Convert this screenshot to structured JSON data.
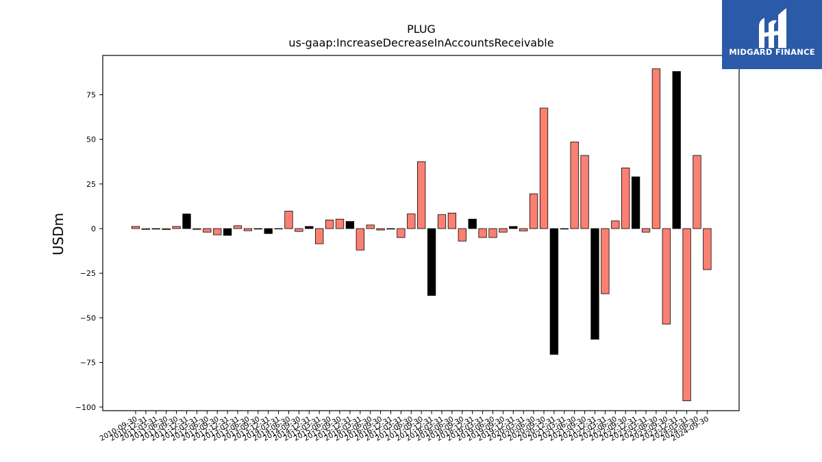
{
  "brand": {
    "name": "MIDGARD FINANCE",
    "colors": {
      "background": "#2b5aa8",
      "text": "#ffffff"
    },
    "icon": "midgard-finance-logo"
  },
  "chart_data": {
    "type": "bar",
    "title": "PLUG",
    "subtitle": "us-gaap:IncreaseDecreaseInAccountsReceivable",
    "xlabel": "",
    "ylabel": "USDm",
    "ylim": [
      -102,
      97
    ],
    "yticks": [
      -100,
      -75,
      -50,
      -25,
      0,
      25,
      50,
      75
    ],
    "grid": false,
    "legend": "none",
    "colors": {
      "quarter": "#fa8072",
      "fiscal_year_end": "#000000",
      "edge": "#000000"
    },
    "categories": [
      "2010-09-30",
      "2010-12-31",
      "2011-03-31",
      "2011-06-30",
      "2011-09-30",
      "2011-12-31",
      "2012-03-31",
      "2012-06-30",
      "2012-09-30",
      "2012-12-31",
      "2013-03-31",
      "2013-06-30",
      "2013-09-30",
      "2013-12-31",
      "2014-03-31",
      "2014-06-30",
      "2014-09-30",
      "2014-12-31",
      "2015-03-31",
      "2015-06-30",
      "2015-09-30",
      "2015-12-31",
      "2016-03-31",
      "2016-06-30",
      "2016-09-30",
      "2016-12-31",
      "2017-03-31",
      "2017-06-30",
      "2017-09-30",
      "2017-12-31",
      "2018-03-31",
      "2018-06-30",
      "2018-09-30",
      "2018-12-31",
      "2019-03-31",
      "2019-06-30",
      "2019-09-30",
      "2019-12-31",
      "2020-03-31",
      "2020-06-30",
      "2020-09-30",
      "2020-12-31",
      "2021-03-31",
      "2021-06-30",
      "2021-09-30",
      "2021-12-31",
      "2022-03-31",
      "2022-06-30",
      "2022-09-30",
      "2022-12-31",
      "2023-03-31",
      "2023-06-30",
      "2023-09-30",
      "2023-12-31",
      "2024-03-31",
      "2024-06-30",
      "2024-09-30"
    ],
    "xticklabels": [
      "2010-09-30",
      "2010-12-31",
      "2011-03-31",
      "2011-06-30",
      "2011-09-30",
      "2011-12-31",
      "2012-03-31",
      "2012-06-30",
      "2012-09-30",
      "2012-12-31",
      "2013-03-31",
      "2013-06-30",
      "2013-09-30",
      "2013-12-31",
      "2014-03-31",
      "2014-06-30",
      "2014-09-30",
      "2014-12-31",
      "2015-03-31",
      "2015-06-30",
      "2015-09-30",
      "2015-12-31",
      "2016-03-31",
      "2016-06-30",
      "2016-09-30",
      "2016-12-31",
      "2017-03-31",
      "2017-06-30",
      "2017-09-30",
      "2017-12-31",
      "2018-03-31",
      "2018-06-30",
      "2018-09-30",
      "2018-12-31",
      "2019-03-31",
      "2019-06-30",
      "2019-09-30",
      "2019-12-31",
      "2020-03-31",
      "2020-06-30",
      "2020-09-30",
      "2020-12-31",
      "2021-03-31",
      "2021-06-30",
      "2021-09-30",
      "2021-12-31",
      "2022-03-31",
      "2022-06-30",
      "2022-09-30",
      "2022-12-31",
      "2023-03-31",
      "2023-06-30",
      "2023-09-30",
      "2023-12-31",
      "2024-03-31",
      "2024-06-30",
      "2024-09-30"
    ],
    "values": [
      1.2,
      -0.5,
      -0.3,
      -0.6,
      1.2,
      8.2,
      -0.5,
      -2.0,
      -3.5,
      -3.8,
      1.6,
      -1.2,
      -0.3,
      -2.8,
      -0.2,
      9.8,
      -1.6,
      1.2,
      -8.5,
      4.8,
      5.3,
      4.0,
      -12.0,
      2.0,
      -0.8,
      -0.3,
      -5.0,
      8.2,
      37.5,
      -37.5,
      7.8,
      8.7,
      -7.0,
      5.3,
      -5.0,
      -5.0,
      -2.0,
      1.2,
      -1.3,
      19.5,
      67.5,
      -70.5,
      -0.3,
      48.5,
      41.0,
      -62.0,
      -36.5,
      4.3,
      34.0,
      29.0,
      -2.0,
      89.5,
      -53.5,
      88.0,
      -96.5,
      41.0,
      -23.0
    ],
    "fiscal_year_end": [
      false,
      false,
      false,
      false,
      false,
      true,
      false,
      false,
      false,
      true,
      false,
      false,
      false,
      true,
      false,
      false,
      false,
      true,
      false,
      false,
      false,
      true,
      false,
      false,
      false,
      false,
      false,
      false,
      false,
      true,
      false,
      false,
      false,
      true,
      false,
      false,
      false,
      true,
      false,
      false,
      false,
      true,
      false,
      false,
      false,
      true,
      false,
      false,
      false,
      true,
      false,
      false,
      false,
      true,
      false,
      false,
      false
    ]
  }
}
